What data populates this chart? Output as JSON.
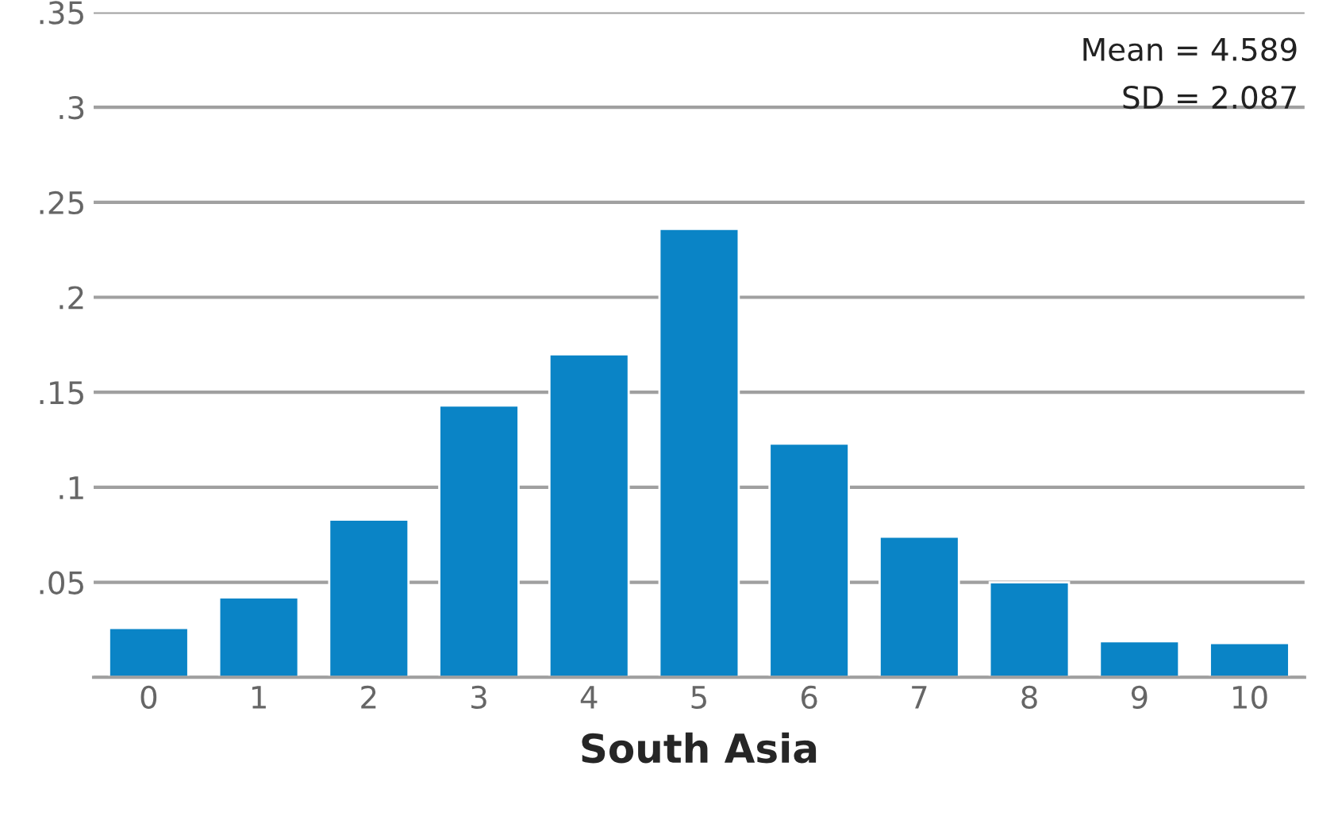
{
  "chart_data": {
    "type": "bar",
    "xlabel": "South Asia",
    "categories": [
      "0",
      "1",
      "2",
      "3",
      "4",
      "5",
      "6",
      "7",
      "8",
      "9",
      "10"
    ],
    "values": [
      0.026,
      0.042,
      0.083,
      0.143,
      0.17,
      0.236,
      0.123,
      0.074,
      0.05,
      0.019,
      0.018
    ],
    "color": "#0a84c6",
    "ylim": [
      0,
      0.35
    ],
    "yticks": [
      {
        "value": 0,
        "label": null
      },
      {
        "value": 0.05,
        "label": ".05"
      },
      {
        "value": 0.1,
        "label": ".1"
      },
      {
        "value": 0.15,
        "label": ".15"
      },
      {
        "value": 0.2,
        "label": ".2"
      },
      {
        "value": 0.25,
        "label": ".25"
      },
      {
        "value": 0.3,
        "label": ".3"
      },
      {
        "value": 0.35,
        "label": ".35"
      }
    ],
    "grid": "y",
    "annotations": [
      "Mean = 4.589",
      "SD = 2.087"
    ]
  }
}
